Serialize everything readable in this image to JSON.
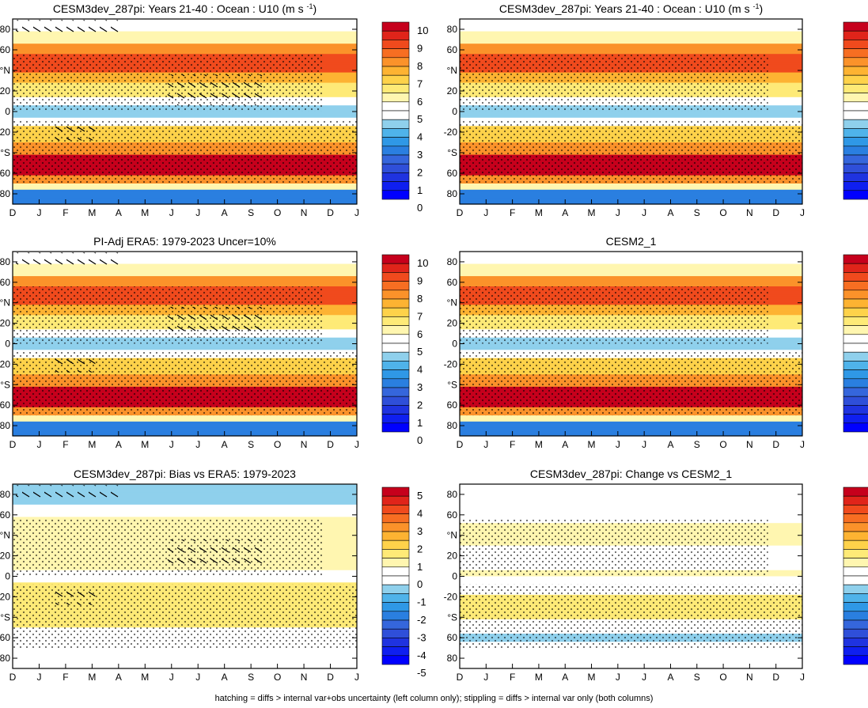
{
  "chart_data": [
    {
      "type": "heatmap",
      "title": "CESM3dev_287pi: Years 21-40 : Ocean : U10",
      "units": "m s",
      "units_exp": "-1",
      "colorbar": "abs"
    },
    {
      "type": "heatmap",
      "title": "CESM3dev_287pi: Years 21-40 : Ocean : U10",
      "units": "m s",
      "units_exp": "-1",
      "colorbar": "abs"
    },
    {
      "type": "heatmap",
      "title": "PI-Adj ERA5: 1979-2023 Uncer=10%",
      "colorbar": "abs"
    },
    {
      "type": "heatmap",
      "title": "CESM2_1",
      "colorbar": "abs"
    },
    {
      "type": "heatmap",
      "title": "CESM3dev_287pi: Bias vs ERA5: 1979-2023",
      "colorbar": "diff"
    },
    {
      "type": "heatmap",
      "title": "CESM3dev_287pi: Change vs CESM2_1",
      "colorbar": "diff"
    }
  ],
  "axes": {
    "x_ticks": [
      "D",
      "J",
      "F",
      "M",
      "A",
      "M",
      "J",
      "J",
      "A",
      "S",
      "O",
      "N",
      "D",
      "J"
    ],
    "y_ticks": [
      "80",
      "60",
      "°N",
      "20",
      "0",
      "-20",
      "°S",
      "60",
      "80"
    ]
  },
  "colorbars": {
    "abs": {
      "labels": [
        "10",
        "9",
        "8",
        "7",
        "6",
        "5",
        "4",
        "3",
        "2",
        "1",
        "0"
      ],
      "colors": [
        "#c6001c",
        "#e0241a",
        "#f04a1d",
        "#f76e22",
        "#fb922a",
        "#fdb332",
        "#fed24a",
        "#feea77",
        "#fff6b0",
        "#ffffff",
        "#ffffff",
        "#8fd0ec",
        "#4fb3ea",
        "#2f98e6",
        "#2a7fe0",
        "#3566dc",
        "#2f4fd9",
        "#1f33e0",
        "#0f1ff0",
        "#0000ff"
      ]
    },
    "diff": {
      "labels": [
        "5",
        "4",
        "3",
        "2",
        "1",
        "0",
        "-1",
        "-2",
        "-3",
        "-4",
        "-5"
      ],
      "colors": [
        "#c6001c",
        "#e0241a",
        "#f04a1d",
        "#f76e22",
        "#fb922a",
        "#fdb332",
        "#fed24a",
        "#feea77",
        "#fff6b0",
        "#ffffff",
        "#ffffff",
        "#8fd0ec",
        "#4fb3ea",
        "#2f98e6",
        "#2a7fe0",
        "#3566dc",
        "#2f4fd9",
        "#1f33e0",
        "#0f1ff0",
        "#0000ff"
      ]
    }
  },
  "footer": "hatching = diffs > internal var+obs uncertainty (left column only); stippling = diffs > internal var only (both columns)"
}
